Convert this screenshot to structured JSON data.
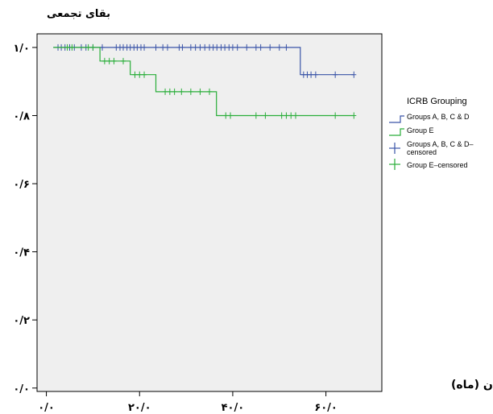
{
  "chart_data": {
    "type": "line",
    "subtype": "kaplan-meier-step",
    "ylabel": "بقای تجمعی",
    "xlabel": "زمان (ماه)",
    "xlim": [
      -2,
      72
    ],
    "ylim": [
      -0.01,
      1.04
    ],
    "x_ticks": [
      {
        "value": 0,
        "label": "۰/۰"
      },
      {
        "value": 20,
        "label": "۲۰/۰"
      },
      {
        "value": 40,
        "label": "۴۰/۰"
      },
      {
        "value": 60,
        "label": "۶۰/۰"
      }
    ],
    "y_ticks": [
      {
        "value": 0.0,
        "label": "۰/۰"
      },
      {
        "value": 0.2,
        "label": "۰/۲"
      },
      {
        "value": 0.4,
        "label": "۰/۴"
      },
      {
        "value": 0.6,
        "label": "۰/۶"
      },
      {
        "value": 0.8,
        "label": "۰/۸"
      },
      {
        "value": 1.0,
        "label": "۱/۰"
      }
    ],
    "legend": {
      "title": "ICRB Grouping",
      "position": "right",
      "entries": [
        {
          "label": "Groups A, B, C & D",
          "kind": "line",
          "series": 0
        },
        {
          "label": "Group E",
          "kind": "line",
          "series": 1
        },
        {
          "label": "Groups A, B, C & D–censored",
          "kind": "censor",
          "series": 0
        },
        {
          "label": "Group E–censored",
          "kind": "censor",
          "series": 1
        }
      ]
    },
    "series": [
      {
        "name": "Groups A, B, C & D",
        "color": "#3B55A8",
        "steps": [
          {
            "x": 1.5,
            "y": 1.0
          },
          {
            "x": 54.5,
            "y": 1.0
          },
          {
            "x": 54.5,
            "y": 0.92
          },
          {
            "x": 66,
            "y": 0.92
          }
        ],
        "censored": [
          {
            "x": 2.5,
            "y": 1.0
          },
          {
            "x": 3.2,
            "y": 1.0
          },
          {
            "x": 4.0,
            "y": 1.0
          },
          {
            "x": 5.0,
            "y": 1.0
          },
          {
            "x": 6.0,
            "y": 1.0
          },
          {
            "x": 7.5,
            "y": 1.0
          },
          {
            "x": 8.5,
            "y": 1.0
          },
          {
            "x": 10.0,
            "y": 1.0
          },
          {
            "x": 12.0,
            "y": 1.0
          },
          {
            "x": 15.0,
            "y": 1.0
          },
          {
            "x": 15.8,
            "y": 1.0
          },
          {
            "x": 16.5,
            "y": 1.0
          },
          {
            "x": 17.3,
            "y": 1.0
          },
          {
            "x": 18.0,
            "y": 1.0
          },
          {
            "x": 18.8,
            "y": 1.0
          },
          {
            "x": 19.5,
            "y": 1.0
          },
          {
            "x": 20.3,
            "y": 1.0
          },
          {
            "x": 21.0,
            "y": 1.0
          },
          {
            "x": 23.5,
            "y": 1.0
          },
          {
            "x": 25.0,
            "y": 1.0
          },
          {
            "x": 26.0,
            "y": 1.0
          },
          {
            "x": 28.5,
            "y": 1.0
          },
          {
            "x": 29.2,
            "y": 1.0
          },
          {
            "x": 31.0,
            "y": 1.0
          },
          {
            "x": 32.0,
            "y": 1.0
          },
          {
            "x": 33.0,
            "y": 1.0
          },
          {
            "x": 34.0,
            "y": 1.0
          },
          {
            "x": 35.0,
            "y": 1.0
          },
          {
            "x": 35.8,
            "y": 1.0
          },
          {
            "x": 36.6,
            "y": 1.0
          },
          {
            "x": 37.5,
            "y": 1.0
          },
          {
            "x": 38.3,
            "y": 1.0
          },
          {
            "x": 39.2,
            "y": 1.0
          },
          {
            "x": 40.0,
            "y": 1.0
          },
          {
            "x": 41.0,
            "y": 1.0
          },
          {
            "x": 43.0,
            "y": 1.0
          },
          {
            "x": 45.0,
            "y": 1.0
          },
          {
            "x": 46.0,
            "y": 1.0
          },
          {
            "x": 48.0,
            "y": 1.0
          },
          {
            "x": 50.0,
            "y": 1.0
          },
          {
            "x": 51.5,
            "y": 1.0
          },
          {
            "x": 55.2,
            "y": 0.92
          },
          {
            "x": 56.0,
            "y": 0.92
          },
          {
            "x": 56.8,
            "y": 0.92
          },
          {
            "x": 57.8,
            "y": 0.92
          },
          {
            "x": 62.0,
            "y": 0.92
          },
          {
            "x": 66.0,
            "y": 0.92
          }
        ]
      },
      {
        "name": "Group E",
        "color": "#2AAE3A",
        "steps": [
          {
            "x": 1.5,
            "y": 1.0
          },
          {
            "x": 11.5,
            "y": 1.0
          },
          {
            "x": 11.5,
            "y": 0.96
          },
          {
            "x": 18.0,
            "y": 0.96
          },
          {
            "x": 18.0,
            "y": 0.92
          },
          {
            "x": 23.5,
            "y": 0.92
          },
          {
            "x": 23.5,
            "y": 0.87
          },
          {
            "x": 36.5,
            "y": 0.87
          },
          {
            "x": 36.5,
            "y": 0.8
          },
          {
            "x": 66,
            "y": 0.8
          }
        ],
        "censored": [
          {
            "x": 4.5,
            "y": 1.0
          },
          {
            "x": 5.5,
            "y": 1.0
          },
          {
            "x": 9.0,
            "y": 1.0
          },
          {
            "x": 10.0,
            "y": 1.0
          },
          {
            "x": 12.5,
            "y": 0.96
          },
          {
            "x": 13.5,
            "y": 0.96
          },
          {
            "x": 14.5,
            "y": 0.96
          },
          {
            "x": 16.5,
            "y": 0.96
          },
          {
            "x": 19.0,
            "y": 0.92
          },
          {
            "x": 20.0,
            "y": 0.92
          },
          {
            "x": 21.0,
            "y": 0.92
          },
          {
            "x": 25.5,
            "y": 0.87
          },
          {
            "x": 26.5,
            "y": 0.87
          },
          {
            "x": 27.5,
            "y": 0.87
          },
          {
            "x": 29.0,
            "y": 0.87
          },
          {
            "x": 31.0,
            "y": 0.87
          },
          {
            "x": 33.0,
            "y": 0.87
          },
          {
            "x": 35.0,
            "y": 0.87
          },
          {
            "x": 38.5,
            "y": 0.8
          },
          {
            "x": 39.5,
            "y": 0.8
          },
          {
            "x": 45.0,
            "y": 0.8
          },
          {
            "x": 47.0,
            "y": 0.8
          },
          {
            "x": 50.5,
            "y": 0.8
          },
          {
            "x": 51.5,
            "y": 0.8
          },
          {
            "x": 52.5,
            "y": 0.8
          },
          {
            "x": 53.5,
            "y": 0.8
          },
          {
            "x": 62.0,
            "y": 0.8
          },
          {
            "x": 66.0,
            "y": 0.8
          }
        ]
      }
    ]
  }
}
